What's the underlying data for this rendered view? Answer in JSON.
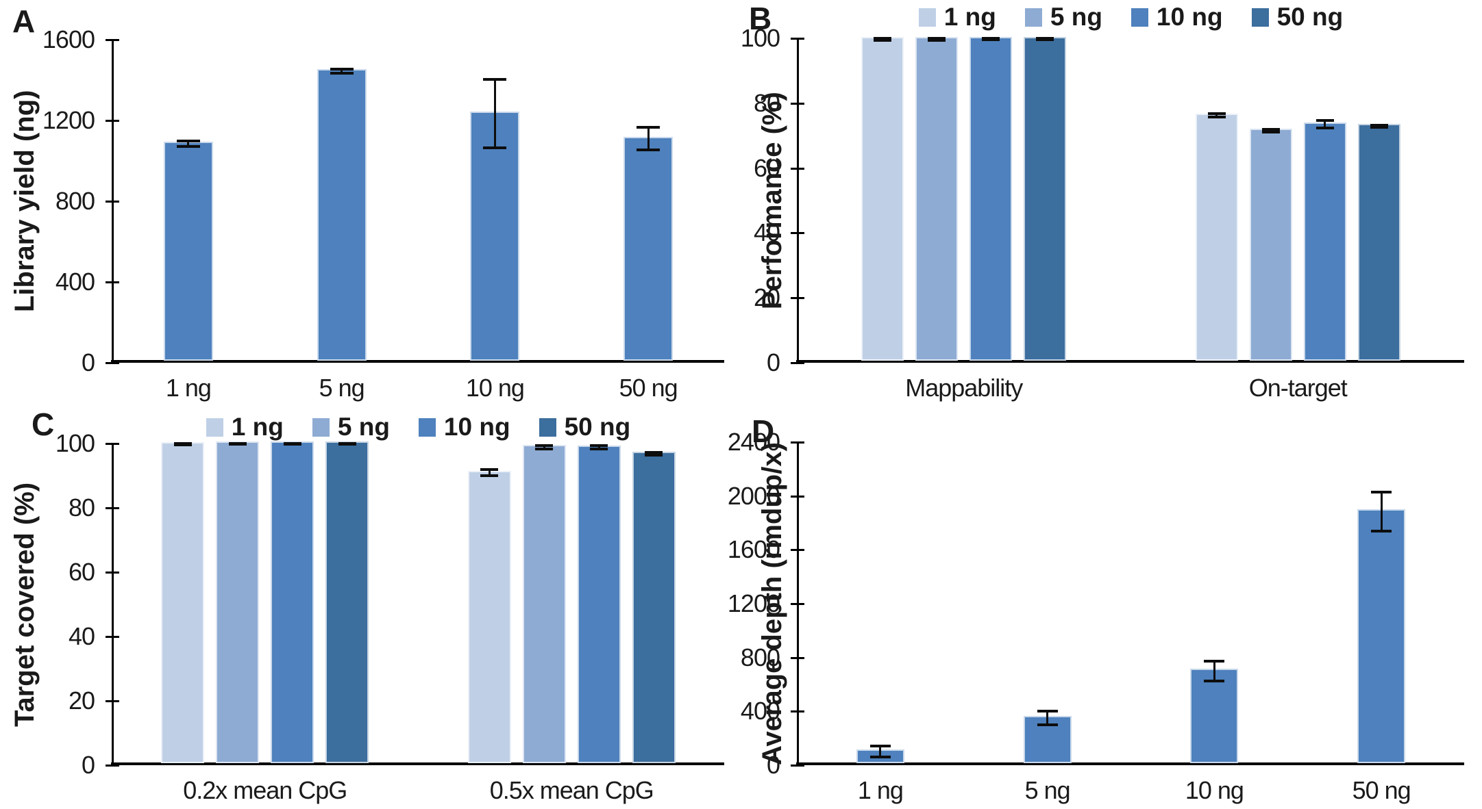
{
  "figure": {
    "background": "#ffffff",
    "axis_color": "#000000",
    "error_bar_color": "#0d0d0d"
  },
  "palette": {
    "1 ng": "#bfd0e6",
    "5 ng": "#8eabd3",
    "10 ng": "#4e81bd",
    "50 ng": "#3c6e9e",
    "single_bar": "#4e81bd"
  },
  "chart_data": [
    {
      "panel": "A",
      "type": "bar",
      "ylabel": "Library yield (ng)",
      "ylim": [
        0,
        1600
      ],
      "yticks": [
        0,
        400,
        800,
        1200,
        1600
      ],
      "categories": [
        "1 ng",
        "5 ng",
        "10 ng",
        "50 ng"
      ],
      "grid": false,
      "legend": false,
      "series": [
        {
          "name": "Library yield",
          "color": "#4e81bd",
          "values": [
            1085,
            1445,
            1235,
            1110
          ],
          "errors": [
            15,
            10,
            170,
            55
          ]
        }
      ]
    },
    {
      "panel": "B",
      "type": "bar",
      "ylabel": "Performance (%)",
      "ylim": [
        0,
        100
      ],
      "yticks": [
        0,
        20,
        40,
        60,
        80,
        100
      ],
      "categories": [
        "Mappability",
        "On-target"
      ],
      "grid": false,
      "legend": true,
      "legend_position": "top-center",
      "series": [
        {
          "name": "1 ng",
          "color": "#bfd0e6",
          "values": [
            99.7,
            76.2
          ],
          "errors": [
            0.3,
            0.5
          ]
        },
        {
          "name": "5 ng",
          "color": "#8eabd3",
          "values": [
            99.7,
            71.6
          ],
          "errors": [
            0.3,
            0.4
          ]
        },
        {
          "name": "10 ng",
          "color": "#4e81bd",
          "values": [
            99.8,
            73.5
          ],
          "errors": [
            0.2,
            1.1
          ]
        },
        {
          "name": "50 ng",
          "color": "#3c6e9e",
          "values": [
            99.8,
            72.9
          ],
          "errors": [
            0.2,
            0.4
          ]
        }
      ]
    },
    {
      "panel": "C",
      "type": "bar",
      "ylabel": "Target covered (%)",
      "ylim": [
        0,
        100
      ],
      "yticks": [
        0,
        20,
        40,
        60,
        80,
        100
      ],
      "categories": [
        "0.2x mean CpG",
        "0.5x mean CpG"
      ],
      "grid": false,
      "legend": true,
      "legend_position": "top-center",
      "series": [
        {
          "name": "1 ng",
          "color": "#bfd0e6",
          "values": [
            99.8,
            90.9
          ],
          "errors": [
            0.2,
            1.0
          ]
        },
        {
          "name": "5 ng",
          "color": "#8eabd3",
          "values": [
            99.9,
            98.9
          ],
          "errors": [
            0.2,
            0.5
          ]
        },
        {
          "name": "10 ng",
          "color": "#4e81bd",
          "values": [
            99.9,
            98.8
          ],
          "errors": [
            0.2,
            0.5
          ]
        },
        {
          "name": "50 ng",
          "color": "#3c6e9e",
          "values": [
            99.9,
            96.8
          ],
          "errors": [
            0.2,
            0.4
          ]
        }
      ]
    },
    {
      "panel": "D",
      "type": "bar",
      "ylabel": "Average depth (rmdup/x)",
      "ylim": [
        0,
        2400
      ],
      "yticks": [
        0,
        400,
        800,
        1200,
        1600,
        2000,
        2400
      ],
      "categories": [
        "1 ng",
        "5 ng",
        "10 ng",
        "50 ng"
      ],
      "grid": false,
      "legend": false,
      "series": [
        {
          "name": "Average depth",
          "color": "#4e81bd",
          "values": [
            100,
            350,
            700,
            1885
          ],
          "errors": [
            40,
            50,
            75,
            145
          ]
        }
      ]
    }
  ]
}
